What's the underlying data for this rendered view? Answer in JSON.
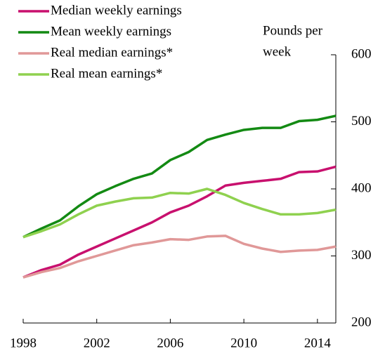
{
  "chart_data": {
    "type": "line",
    "ylabel": [
      "Pounds per",
      "week"
    ],
    "x": [
      1998,
      1999,
      2000,
      2001,
      2002,
      2003,
      2004,
      2005,
      2006,
      2007,
      2008,
      2009,
      2010,
      2011,
      2012,
      2013,
      2014,
      2015
    ],
    "series": [
      {
        "name": "Median weekly earnings",
        "color": "#c8106e",
        "values": [
          268,
          279,
          287,
          302,
          314,
          326,
          338,
          350,
          365,
          375,
          389,
          405,
          409,
          412,
          415,
          425,
          426,
          433
        ]
      },
      {
        "name": "Mean weekly earnings",
        "color": "#138a13",
        "values": [
          328,
          341,
          353,
          374,
          392,
          404,
          415,
          423,
          443,
          455,
          473,
          481,
          488,
          491,
          491,
          501,
          503,
          509
        ]
      },
      {
        "name": "Real median earnings*",
        "color": "#e09898",
        "values": [
          268,
          276,
          282,
          292,
          300,
          308,
          316,
          320,
          325,
          324,
          329,
          330,
          318,
          311,
          306,
          308,
          309,
          314
        ]
      },
      {
        "name": "Real mean earnings*",
        "color": "#8fd14f",
        "values": [
          328,
          337,
          347,
          362,
          375,
          381,
          386,
          387,
          394,
          393,
          400,
          391,
          379,
          370,
          362,
          362,
          364,
          369
        ]
      }
    ],
    "xlim": [
      1998,
      2015
    ],
    "xticks": [
      1998,
      2002,
      2006,
      2010,
      2014
    ],
    "ylim": [
      200,
      600
    ],
    "yticks": [
      200,
      300,
      400,
      500,
      600
    ],
    "axis_side": "right"
  }
}
